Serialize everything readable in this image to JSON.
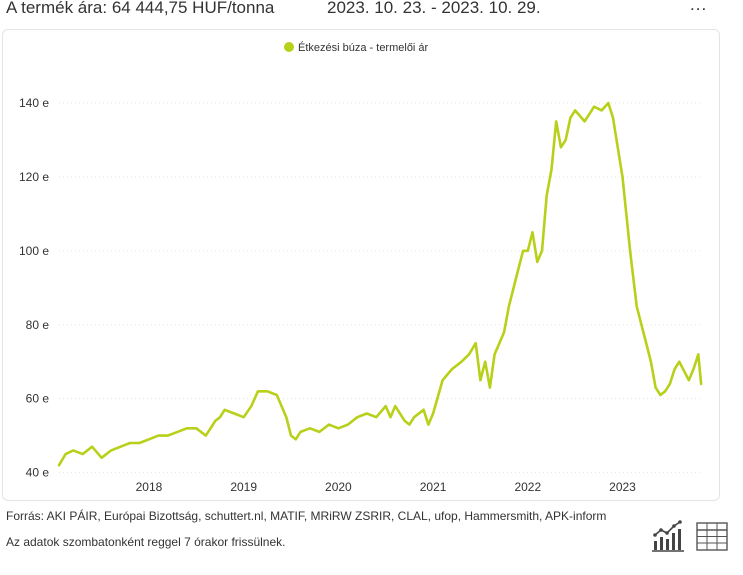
{
  "header": {
    "price_text": "A termék ára: 64 444,75 HUF/tonna",
    "date_range": "2023. 10. 23. - 2023. 10. 29.",
    "menu_label": "..."
  },
  "footer": {
    "sources": "Forrás: AKI PÁIR, Európai Bizottság, schuttert.nl, MATIF, MRiRW ZSRIR, CLAL, ufop, Hammersmith, APK-inform",
    "update_note": "Az adatok szombatonként reggel 7 órakor frissülnek."
  },
  "icons": {
    "chart_view": "line-chart-icon",
    "table_view": "table-icon"
  },
  "colors": {
    "series": "#b8d019",
    "grid": "#e6e6e6"
  },
  "chart_data": {
    "type": "line",
    "title": "",
    "xlabel": "",
    "ylabel": "",
    "x_range": [
      2017.05,
      2023.85
    ],
    "ylim": [
      38,
      150
    ],
    "y_ticks": [
      40,
      60,
      80,
      100,
      120,
      140
    ],
    "y_tick_labels": [
      "40 e",
      "60 e",
      "80 e",
      "100 e",
      "120 e",
      "140 e"
    ],
    "x_ticks": [
      2018,
      2019,
      2020,
      2021,
      2022,
      2023
    ],
    "x_tick_labels": [
      "2018",
      "2019",
      "2020",
      "2021",
      "2022",
      "2023"
    ],
    "grid": true,
    "legend_position": "top-center",
    "series": [
      {
        "name": "Étkezési búza - termelői ár",
        "color": "#b8d019",
        "x": [
          2017.05,
          2017.12,
          2017.2,
          2017.3,
          2017.4,
          2017.5,
          2017.6,
          2017.7,
          2017.8,
          2017.9,
          2018.0,
          2018.1,
          2018.2,
          2018.3,
          2018.4,
          2018.5,
          2018.6,
          2018.7,
          2018.75,
          2018.8,
          2018.9,
          2019.0,
          2019.08,
          2019.15,
          2019.25,
          2019.35,
          2019.45,
          2019.5,
          2019.55,
          2019.6,
          2019.7,
          2019.8,
          2019.9,
          2020.0,
          2020.1,
          2020.2,
          2020.3,
          2020.4,
          2020.5,
          2020.55,
          2020.6,
          2020.7,
          2020.75,
          2020.8,
          2020.9,
          2020.95,
          2021.0,
          2021.1,
          2021.2,
          2021.3,
          2021.38,
          2021.45,
          2021.5,
          2021.55,
          2021.6,
          2021.65,
          2021.7,
          2021.75,
          2021.8,
          2021.85,
          2021.9,
          2021.95,
          2022.0,
          2022.05,
          2022.1,
          2022.15,
          2022.2,
          2022.25,
          2022.3,
          2022.35,
          2022.4,
          2022.45,
          2022.5,
          2022.6,
          2022.7,
          2022.78,
          2022.85,
          2022.9,
          2023.0,
          2023.08,
          2023.15,
          2023.25,
          2023.3,
          2023.35,
          2023.4,
          2023.45,
          2023.5,
          2023.55,
          2023.6,
          2023.7,
          2023.75,
          2023.8,
          2023.83
        ],
        "y": [
          42,
          45,
          46,
          45,
          47,
          44,
          46,
          47,
          48,
          48,
          49,
          50,
          50,
          51,
          52,
          52,
          50,
          54,
          55,
          57,
          56,
          55,
          58,
          62,
          62,
          61,
          55,
          50,
          49,
          51,
          52,
          51,
          53,
          52,
          53,
          55,
          56,
          55,
          58,
          55,
          58,
          54,
          53,
          55,
          57,
          53,
          56,
          65,
          68,
          70,
          72,
          75,
          65,
          70,
          63,
          72,
          75,
          78,
          85,
          90,
          95,
          100,
          100,
          105,
          97,
          100,
          115,
          122,
          135,
          128,
          130,
          136,
          138,
          135,
          139,
          138,
          140,
          136,
          120,
          100,
          85,
          75,
          70,
          63,
          61,
          62,
          64,
          68,
          70,
          65,
          68,
          72,
          64
        ]
      }
    ]
  }
}
